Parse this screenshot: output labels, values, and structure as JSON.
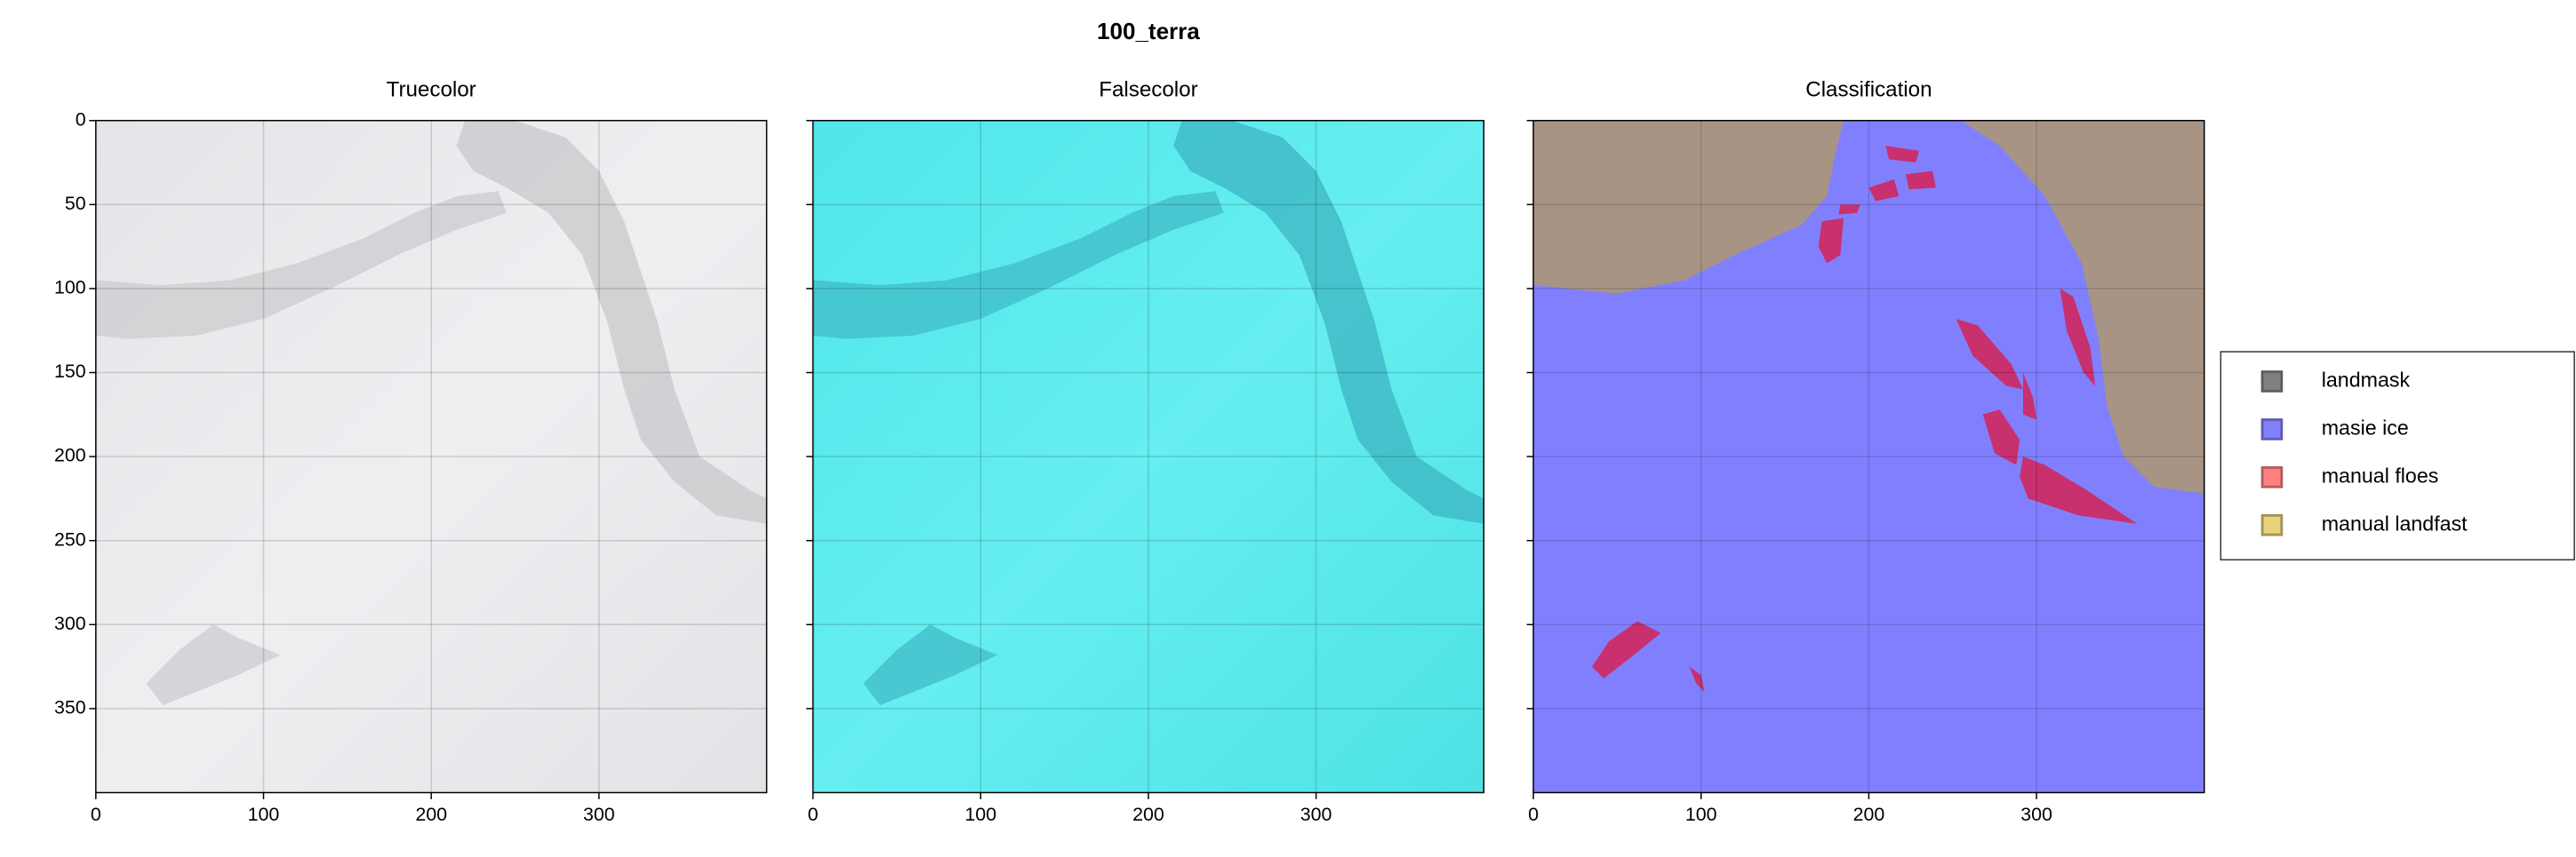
{
  "title": "100_terra",
  "chart_data": [
    {
      "type": "image",
      "title": "Truecolor",
      "xlim": [
        0,
        400
      ],
      "ylim": [
        400,
        0
      ],
      "xticks": [
        0,
        100,
        200,
        300
      ],
      "yticks": [
        0,
        50,
        100,
        150,
        200,
        250,
        300,
        350
      ],
      "ytick_labels": true,
      "grid": true
    },
    {
      "type": "image",
      "title": "Falsecolor",
      "xlim": [
        0,
        400
      ],
      "ylim": [
        400,
        0
      ],
      "xticks": [
        0,
        100,
        200,
        300
      ],
      "yticks": [
        0,
        50,
        100,
        150,
        200,
        250,
        300,
        350
      ],
      "ytick_labels": false,
      "grid": true
    },
    {
      "type": "image",
      "title": "Classification",
      "xlim": [
        0,
        400
      ],
      "ylim": [
        400,
        0
      ],
      "xticks": [
        0,
        100,
        200,
        300
      ],
      "yticks": [
        0,
        50,
        100,
        150,
        200,
        250,
        300,
        350
      ],
      "ytick_labels": false,
      "grid": true,
      "legend": {
        "position": "right",
        "series": [
          {
            "name": "landmask",
            "color": "#808080"
          },
          {
            "name": "masie ice",
            "color": "#8080ff"
          },
          {
            "name": "manual floes",
            "color": "#ff8080"
          },
          {
            "name": "manual landfast",
            "color": "#ead27a"
          }
        ]
      }
    }
  ]
}
